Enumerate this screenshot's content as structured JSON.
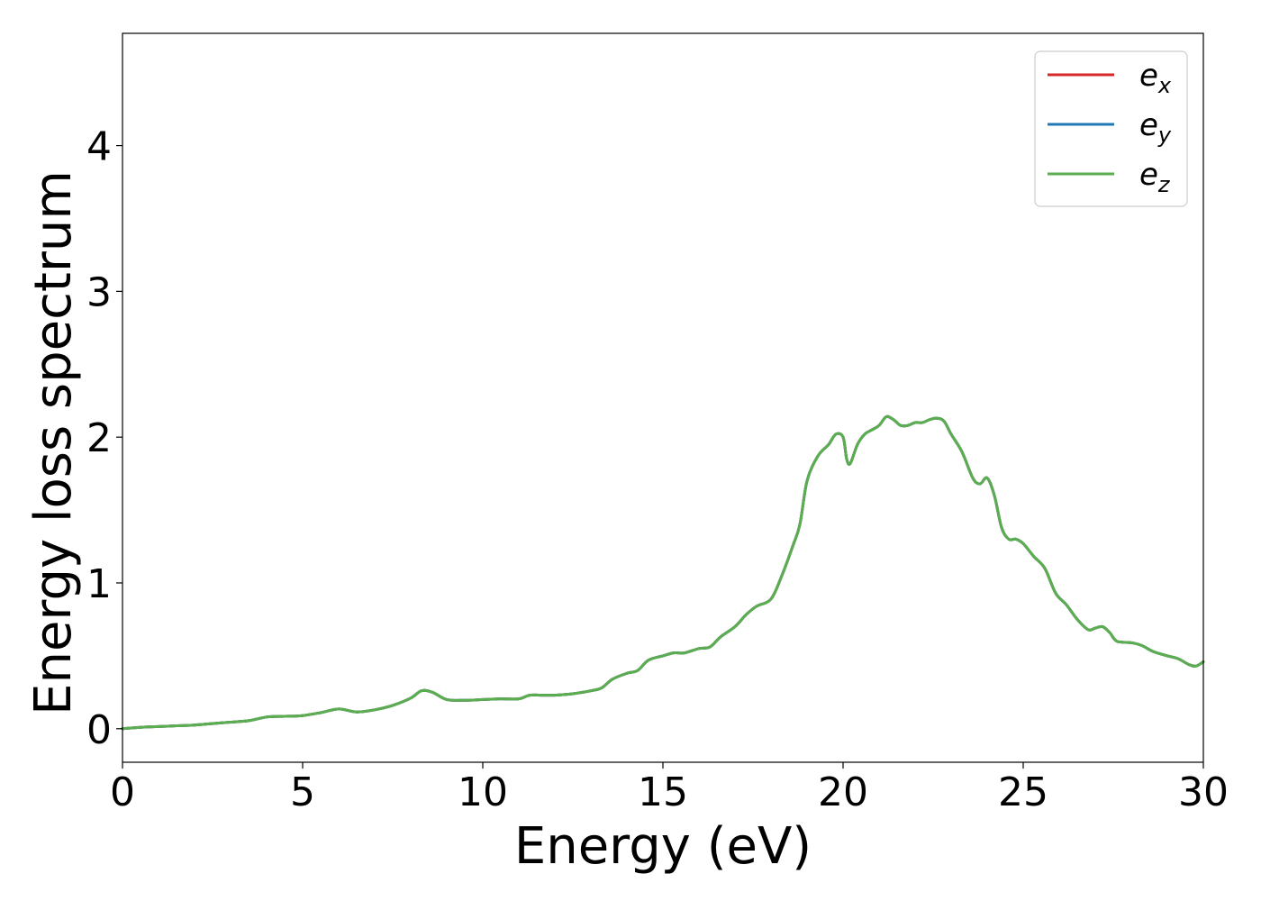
{
  "chart_data": {
    "type": "line",
    "xlabel": "Energy (eV)",
    "ylabel": "Energy loss spectrum",
    "xlim": [
      0,
      30
    ],
    "ylim": [
      -0.23,
      4.77
    ],
    "x_ticks": [
      "0",
      "5",
      "10",
      "15",
      "20",
      "25",
      "30"
    ],
    "y_ticks": [
      "0",
      "1",
      "2",
      "3",
      "4"
    ],
    "grid": false,
    "legend_position": "top-right",
    "series": [
      {
        "name": "e_x",
        "legend_base": "e",
        "legend_sub": "x",
        "color": "#d62728",
        "x": [
          0,
          0.5,
          1,
          1.5,
          2,
          2.5,
          3,
          3.5,
          4,
          4.5,
          5,
          5.5,
          6,
          6.5,
          7,
          7.5,
          8,
          8.3,
          8.6,
          9,
          9.5,
          10,
          10.5,
          11,
          11.3,
          11.6,
          12,
          12.5,
          13,
          13.3,
          13.6,
          14,
          14.3,
          14.6,
          15,
          15.3,
          15.6,
          16,
          16.3,
          16.6,
          17,
          17.3,
          17.6,
          18,
          18.3,
          18.6,
          18.8,
          19,
          19.3,
          19.6,
          19.8,
          20,
          20.1,
          20.2,
          20.4,
          20.6,
          20.8,
          21,
          21.2,
          21.4,
          21.6,
          21.8,
          22,
          22.2,
          22.4,
          22.6,
          22.8,
          23,
          23.3,
          23.6,
          23.8,
          24,
          24.2,
          24.4,
          24.6,
          24.8,
          25,
          25.3,
          25.6,
          25.9,
          26.2,
          26.5,
          26.8,
          27,
          27.2,
          27.4,
          27.6,
          28,
          28.3,
          28.6,
          29,
          29.3,
          29.6,
          29.8,
          30
        ],
        "y": [
          0.0,
          0.01,
          0.015,
          0.02,
          0.025,
          0.035,
          0.045,
          0.055,
          0.08,
          0.085,
          0.09,
          0.11,
          0.135,
          0.115,
          0.13,
          0.16,
          0.21,
          0.26,
          0.25,
          0.2,
          0.195,
          0.2,
          0.205,
          0.205,
          0.23,
          0.23,
          0.23,
          0.24,
          0.26,
          0.28,
          0.34,
          0.38,
          0.4,
          0.47,
          0.5,
          0.52,
          0.52,
          0.55,
          0.56,
          0.63,
          0.7,
          0.78,
          0.84,
          0.89,
          1.05,
          1.25,
          1.4,
          1.7,
          1.87,
          1.95,
          2.02,
          2.0,
          1.85,
          1.82,
          1.95,
          2.02,
          2.05,
          2.08,
          2.14,
          2.12,
          2.08,
          2.08,
          2.1,
          2.1,
          2.12,
          2.13,
          2.11,
          2.02,
          1.9,
          1.72,
          1.68,
          1.72,
          1.6,
          1.38,
          1.3,
          1.3,
          1.27,
          1.18,
          1.1,
          0.93,
          0.85,
          0.75,
          0.68,
          0.69,
          0.7,
          0.66,
          0.6,
          0.59,
          0.57,
          0.53,
          0.5,
          0.48,
          0.44,
          0.43,
          0.46
        ]
      },
      {
        "name": "e_y",
        "legend_base": "e",
        "legend_sub": "y",
        "color": "#1f77b4",
        "x": [
          0,
          0.5,
          1,
          1.5,
          2,
          2.5,
          3,
          3.5,
          4,
          4.5,
          5,
          5.5,
          6,
          6.5,
          7,
          7.5,
          8,
          8.3,
          8.6,
          9,
          9.5,
          10,
          10.5,
          11,
          11.3,
          11.6,
          12,
          12.5,
          13,
          13.3,
          13.6,
          14,
          14.3,
          14.6,
          15,
          15.3,
          15.6,
          16,
          16.3,
          16.6,
          17,
          17.3,
          17.6,
          18,
          18.3,
          18.6,
          18.8,
          19,
          19.3,
          19.6,
          19.8,
          20,
          20.1,
          20.2,
          20.4,
          20.6,
          20.8,
          21,
          21.2,
          21.4,
          21.6,
          21.8,
          22,
          22.2,
          22.4,
          22.6,
          22.8,
          23,
          23.3,
          23.6,
          23.8,
          24,
          24.2,
          24.4,
          24.6,
          24.8,
          25,
          25.3,
          25.6,
          25.9,
          26.2,
          26.5,
          26.8,
          27,
          27.2,
          27.4,
          27.6,
          28,
          28.3,
          28.6,
          29,
          29.3,
          29.6,
          29.8,
          30
        ],
        "y": [
          0.0,
          0.01,
          0.015,
          0.02,
          0.025,
          0.035,
          0.045,
          0.055,
          0.08,
          0.085,
          0.09,
          0.11,
          0.135,
          0.115,
          0.13,
          0.16,
          0.21,
          0.26,
          0.25,
          0.2,
          0.195,
          0.2,
          0.205,
          0.205,
          0.23,
          0.23,
          0.23,
          0.24,
          0.26,
          0.28,
          0.34,
          0.38,
          0.4,
          0.47,
          0.5,
          0.52,
          0.52,
          0.55,
          0.56,
          0.63,
          0.7,
          0.78,
          0.84,
          0.89,
          1.05,
          1.25,
          1.4,
          1.7,
          1.87,
          1.95,
          2.02,
          2.0,
          1.85,
          1.82,
          1.95,
          2.02,
          2.05,
          2.08,
          2.14,
          2.12,
          2.08,
          2.08,
          2.1,
          2.1,
          2.12,
          2.13,
          2.11,
          2.02,
          1.9,
          1.72,
          1.68,
          1.72,
          1.6,
          1.38,
          1.3,
          1.3,
          1.27,
          1.18,
          1.1,
          0.93,
          0.85,
          0.75,
          0.68,
          0.69,
          0.7,
          0.66,
          0.6,
          0.59,
          0.57,
          0.53,
          0.5,
          0.48,
          0.44,
          0.43,
          0.46
        ]
      },
      {
        "name": "e_z",
        "legend_base": "e",
        "legend_sub": "z",
        "color": "#5aae4f",
        "x": [
          0,
          0.5,
          1,
          1.5,
          2,
          2.5,
          3,
          3.5,
          4,
          4.5,
          5,
          5.5,
          6,
          6.5,
          7,
          7.5,
          8,
          8.3,
          8.6,
          9,
          9.5,
          10,
          10.5,
          11,
          11.3,
          11.6,
          12,
          12.5,
          13,
          13.3,
          13.6,
          14,
          14.3,
          14.6,
          15,
          15.3,
          15.6,
          16,
          16.3,
          16.6,
          17,
          17.3,
          17.6,
          18,
          18.3,
          18.6,
          18.8,
          19,
          19.3,
          19.6,
          19.8,
          20,
          20.1,
          20.2,
          20.4,
          20.6,
          20.8,
          21,
          21.2,
          21.4,
          21.6,
          21.8,
          22,
          22.2,
          22.4,
          22.6,
          22.8,
          23,
          23.3,
          23.6,
          23.8,
          24,
          24.2,
          24.4,
          24.6,
          24.8,
          25,
          25.3,
          25.6,
          25.9,
          26.2,
          26.5,
          26.8,
          27,
          27.2,
          27.4,
          27.6,
          28,
          28.3,
          28.6,
          29,
          29.3,
          29.6,
          29.8,
          30
        ],
        "y": [
          0.0,
          0.01,
          0.015,
          0.02,
          0.025,
          0.035,
          0.045,
          0.055,
          0.08,
          0.085,
          0.09,
          0.11,
          0.135,
          0.115,
          0.13,
          0.16,
          0.21,
          0.26,
          0.25,
          0.2,
          0.195,
          0.2,
          0.205,
          0.205,
          0.23,
          0.23,
          0.23,
          0.24,
          0.26,
          0.28,
          0.34,
          0.38,
          0.4,
          0.47,
          0.5,
          0.52,
          0.52,
          0.55,
          0.56,
          0.63,
          0.7,
          0.78,
          0.84,
          0.89,
          1.05,
          1.25,
          1.4,
          1.7,
          1.87,
          1.95,
          2.02,
          2.0,
          1.85,
          1.82,
          1.95,
          2.02,
          2.05,
          2.08,
          2.14,
          2.12,
          2.08,
          2.08,
          2.1,
          2.1,
          2.12,
          2.13,
          2.11,
          2.02,
          1.9,
          1.72,
          1.68,
          1.72,
          1.6,
          1.38,
          1.3,
          1.3,
          1.27,
          1.18,
          1.1,
          0.93,
          0.85,
          0.75,
          0.68,
          0.69,
          0.7,
          0.66,
          0.6,
          0.59,
          0.57,
          0.53,
          0.5,
          0.48,
          0.44,
          0.43,
          0.46
        ]
      }
    ]
  }
}
